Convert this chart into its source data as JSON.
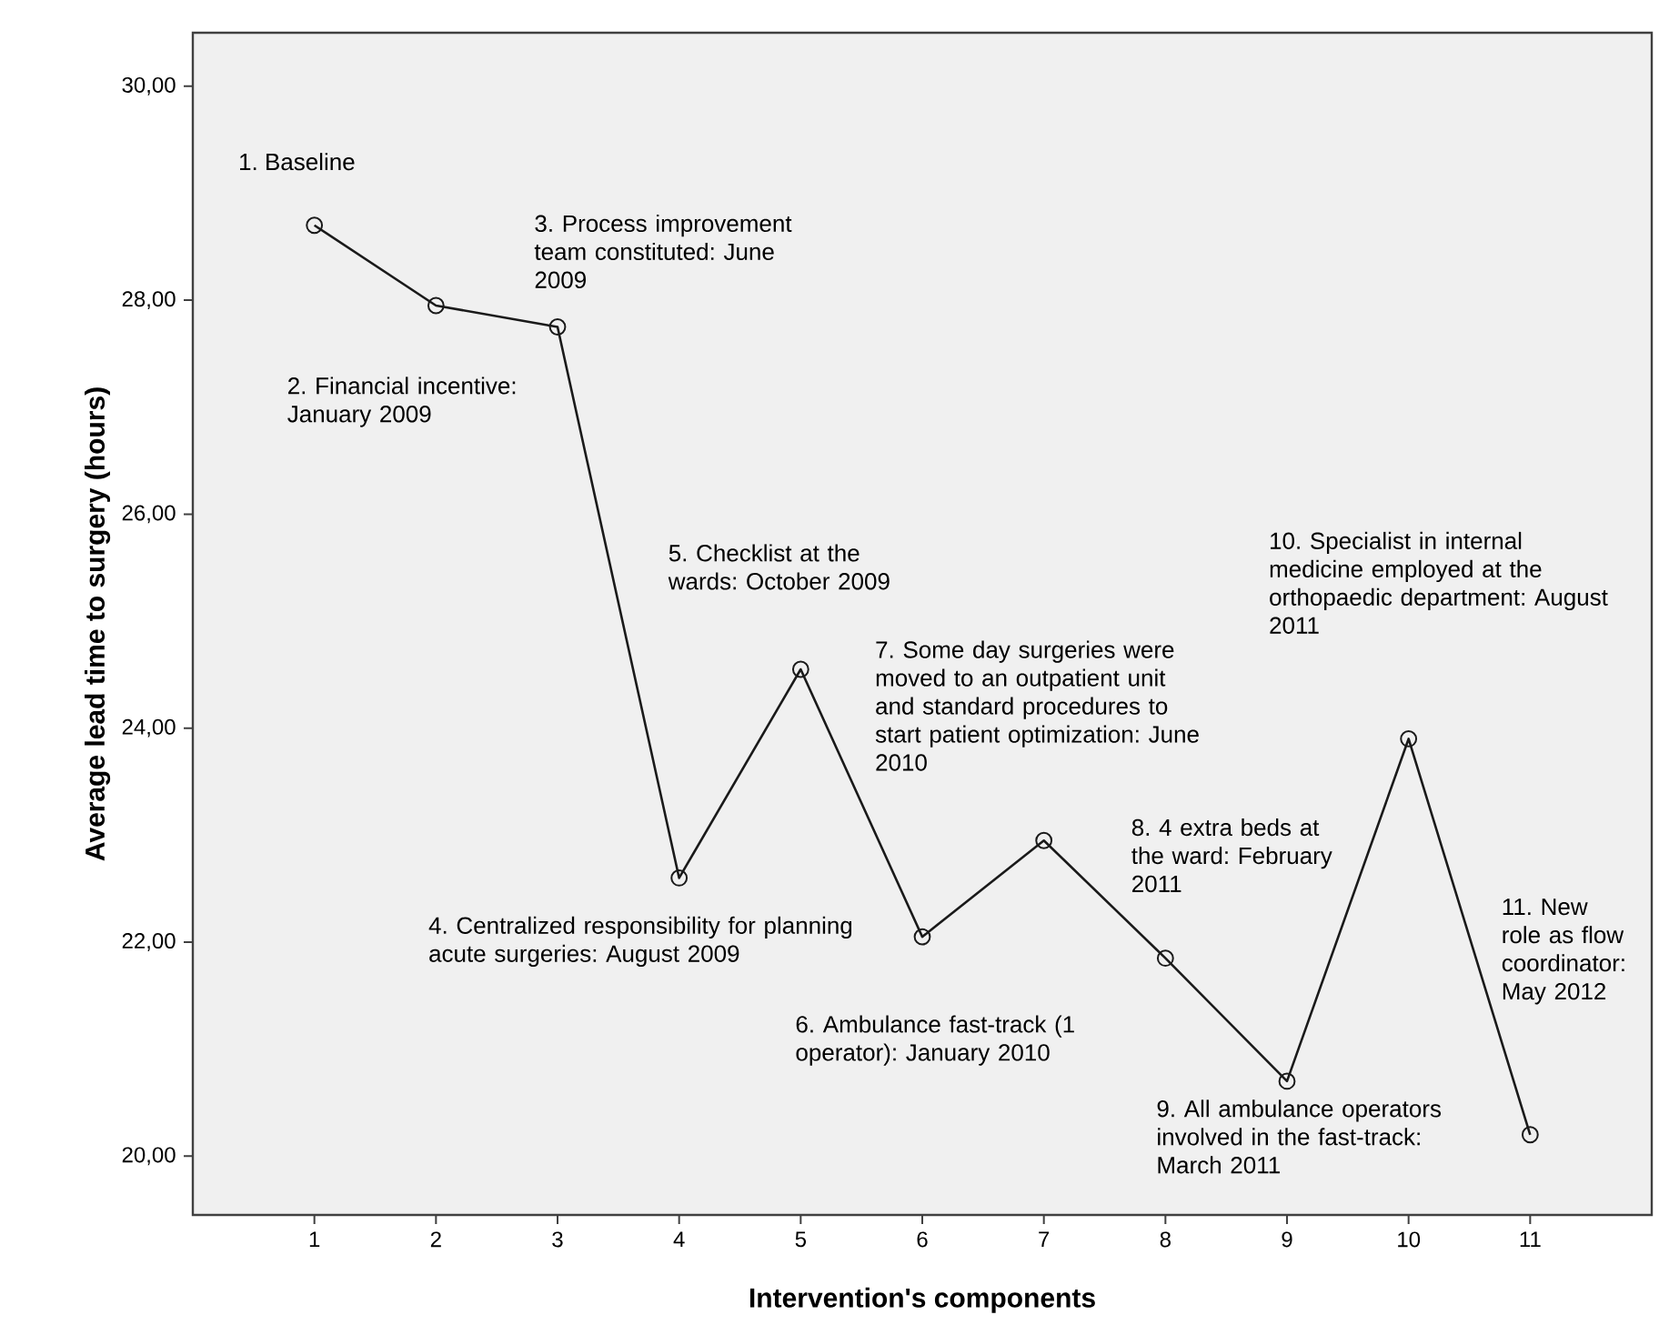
{
  "chart_data": {
    "type": "line",
    "xlabel": "Intervention's components",
    "ylabel": "Average lead time to surgery (hours)",
    "x": [
      1,
      2,
      3,
      4,
      5,
      6,
      7,
      8,
      9,
      10,
      11
    ],
    "values": [
      28.7,
      27.95,
      27.75,
      22.6,
      24.55,
      22.05,
      22.95,
      21.85,
      20.7,
      23.9,
      20.2
    ],
    "color": "#1a1a1a",
    "marker": "circle",
    "line_style": "solid",
    "xlim": [
      0,
      12
    ],
    "xticks": [
      1,
      2,
      3,
      4,
      5,
      6,
      7,
      8,
      9,
      10,
      11
    ],
    "ylim": [
      19.45,
      30.5
    ],
    "yticks": [
      {
        "value": 20,
        "label": "20,00"
      },
      {
        "value": 22,
        "label": "22,00"
      },
      {
        "value": 24,
        "label": "24,00"
      },
      {
        "value": 26,
        "label": "26,00"
      },
      {
        "value": 28,
        "label": "28,00"
      },
      {
        "value": 30,
        "label": "30,00"
      }
    ],
    "annotations": [
      "1. Baseline",
      "2. Financial incentive: January 2009",
      "3. Process improvement team constituted: June 2009",
      "4. Centralized responsibility for planning acute surgeries: August 2009",
      "5. Checklist at the wards: October 2009",
      "6. Ambulance fast-track (1 operator): January 2010",
      "7. Some day surgeries were moved to an outpatient unit and standard procedures to start patient optimization: June 2010",
      "8. 4 extra beds at the ward: February 2011",
      "9. All ambulance operators involved in the fast-track: March 2011",
      "10. Specialist in internal medicine employed at the orthopaedic department: August 2011",
      "11. New role as flow coordinator: May 2012"
    ]
  }
}
